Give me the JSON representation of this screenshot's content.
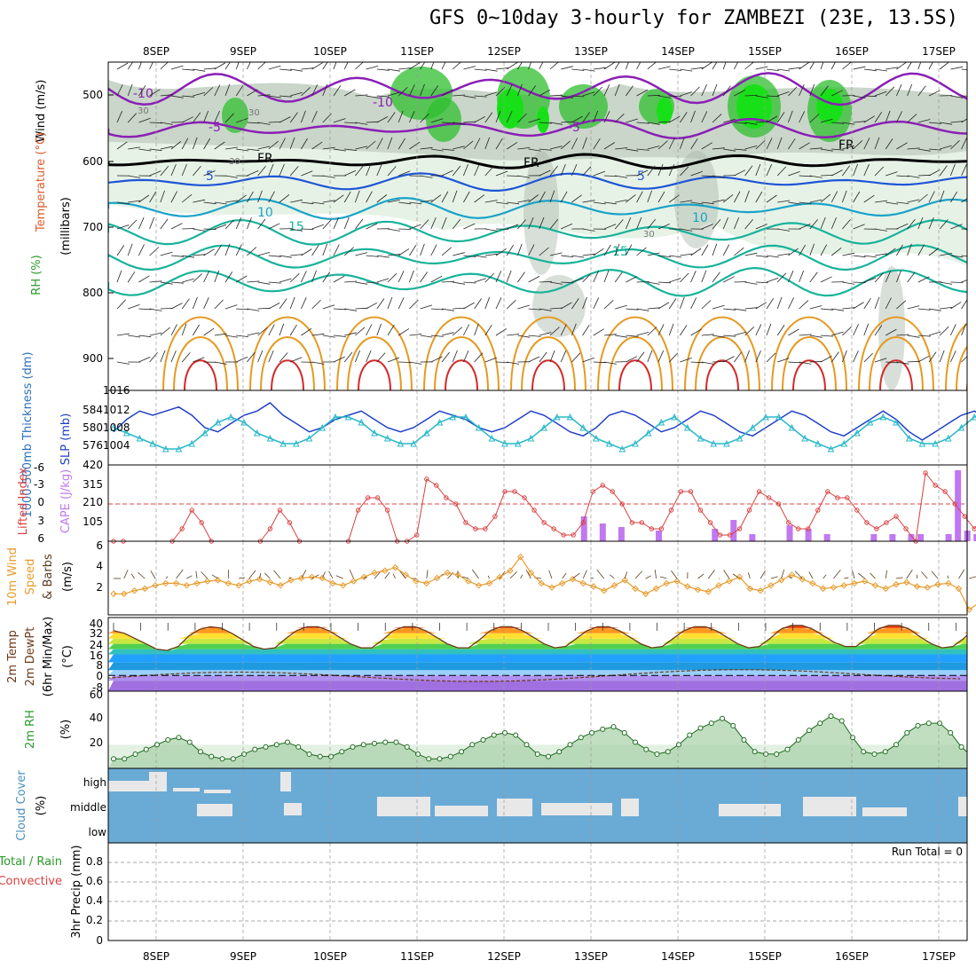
{
  "title": "GFS 0~10day 3-hourly for ZAMBEZI (23E, 13.5S)",
  "dates": [
    "8SEP",
    "9SEP",
    "10SEP",
    "11SEP",
    "12SEP",
    "13SEP",
    "14SEP",
    "15SEP",
    "16SEP",
    "17SEP"
  ],
  "colors": {
    "rh_green": "#2fbf2f",
    "rh_grey": "#8c9a8c",
    "fr_line": "#000000",
    "temp_purple": "#8a1fb5",
    "temp_blue": "#1f55d6",
    "temp_cyan": "#19a2c8",
    "temp_teal": "#17b39a",
    "temp_orange": "#e59a22",
    "temp_red": "#d42a2a",
    "slp_line": "#1f3fc8",
    "thick_line": "#2ab8c8",
    "li_line": "#d84040",
    "cape_bar": "#c078f0",
    "wind_line": "#e89a2a",
    "rh2m_fill": "#3aa03a",
    "cloud_blue": "#6aabd6",
    "cloud_gap": "#e8e8e8"
  },
  "panels": {
    "upper": {
      "ylabel_wind": "Wind (m/s)",
      "ylabel_temp": "Temperature (°C)",
      "ylabel_rh": "RH (%)",
      "ylabel_pres": "(millibars)",
      "yticks": [
        "500",
        "600",
        "700",
        "800",
        "900"
      ],
      "contour_labels": [
        "-10",
        "-10",
        "-5",
        "-5",
        "FR",
        "FR",
        "FR",
        "5",
        "5",
        "10",
        "10",
        "15",
        "15",
        "30",
        "30",
        "30",
        "30"
      ]
    },
    "slp": {
      "ylabel_left": "1000-500mb Thickness (dm)",
      "ylabel_right": "SLP (mb)",
      "left_ticks": [
        "584",
        "580",
        "576"
      ],
      "right_ticks": [
        "1016",
        "1012",
        "1008",
        "1004"
      ]
    },
    "cape": {
      "ylabel_left": "Lifted Index",
      "ylabel_right": "CAPE (J/kg)",
      "left_ticks": [
        "-6",
        "-3",
        "0",
        "3",
        "6"
      ],
      "right_ticks": [
        "420",
        "315",
        "210",
        "105"
      ]
    },
    "wind10": {
      "ylabel_a": "10m Wind",
      "ylabel_b": "Speed",
      "ylabel_c": "& Barbs",
      "ylabel_d": "(m/s)",
      "yticks": [
        "6",
        "4",
        "2"
      ]
    },
    "temp2m": {
      "ylabel_a": "2m Temp",
      "ylabel_b": "2m DewPt",
      "ylabel_c": "(6hr Min/Max)",
      "ylabel_d": "(°C)",
      "yticks": [
        "40",
        "32",
        "24",
        "16",
        "8",
        "0",
        "-8"
      ]
    },
    "rh2m": {
      "ylabel_a": "2m RH",
      "ylabel_b": "(%)",
      "yticks": [
        "60",
        "40",
        "20"
      ]
    },
    "cloud": {
      "ylabel_a": "Cloud Cover",
      "ylabel_b": "(%)",
      "levels": [
        "high",
        "middle",
        "low"
      ]
    },
    "precip": {
      "ylabel_a": "Total / Rain",
      "ylabel_b": "Convective",
      "ylabel_c": "3hr Precip (mm)",
      "yticks": [
        "0.8",
        "0.6",
        "0.4",
        "0.2",
        "0"
      ],
      "run_total": "Run Total = 0"
    }
  },
  "chart_data": [
    {
      "type": "line",
      "name_hint": "SLP panel",
      "x_start": "8SEP",
      "step_hours": 3,
      "series": [
        {
          "name": "SLP (mb)",
          "axis": "right",
          "values": [
            1008,
            1011,
            1013,
            1012,
            1013,
            1014,
            1012,
            1009,
            1008,
            1010,
            1012,
            1013,
            1015,
            1012,
            1010,
            1008,
            1009,
            1011,
            1012,
            1013,
            1011,
            1009,
            1008,
            1009,
            1011,
            1013,
            1012,
            1011,
            1009,
            1008,
            1009,
            1011,
            1013,
            1012,
            1010,
            1008,
            1007,
            1009,
            1012,
            1013,
            1012,
            1010,
            1008,
            1009,
            1011,
            1013,
            1012,
            1010,
            1008,
            1007,
            1009,
            1011,
            1013,
            1012,
            1010,
            1008,
            1007,
            1009,
            1011,
            1013,
            1011,
            1008,
            1006,
            1008,
            1010,
            1012,
            1013,
            1011,
            1009,
            1008,
            1009,
            1011,
            1012,
            1010,
            1008,
            1006,
            1005,
            1004,
            1007,
            1010,
            1011
          ]
        },
        {
          "name": "Thickness (dm)",
          "axis": "left",
          "values": [
            580,
            579,
            578,
            577,
            576,
            576,
            577,
            579,
            581,
            582,
            581,
            579,
            578,
            577,
            577,
            578,
            580,
            582,
            582,
            581,
            579,
            578,
            577,
            577,
            579,
            581,
            582,
            582,
            580,
            578,
            577,
            577,
            578,
            580,
            582,
            582,
            580,
            578,
            577,
            576,
            577,
            579,
            581,
            582,
            580,
            578,
            577,
            577,
            578,
            580,
            582,
            582,
            580,
            578,
            577,
            576,
            577,
            579,
            581,
            582,
            581,
            578,
            577,
            577,
            578,
            580,
            582,
            583,
            581,
            579,
            578,
            577,
            578,
            580,
            582,
            584,
            583,
            581,
            579,
            579,
            580
          ]
        }
      ]
    },
    {
      "type": "line",
      "name_hint": "Lifted Index / CAPE panel",
      "li_values": [
        6,
        6,
        null,
        null,
        null,
        null,
        6,
        4,
        1,
        3,
        6,
        null,
        null,
        null,
        null,
        6,
        4,
        1,
        3,
        6,
        null,
        null,
        null,
        null,
        6,
        1,
        -1,
        -1,
        1,
        6,
        6,
        5,
        -4,
        -3,
        -1,
        0,
        3,
        4,
        4,
        2,
        -2,
        -2,
        -1,
        1,
        3,
        4,
        5,
        5,
        3,
        -2,
        -3,
        -2,
        0,
        3,
        3,
        4,
        4,
        1,
        -2,
        -2,
        1,
        3,
        5,
        5,
        4,
        1,
        -2,
        -1,
        0,
        3,
        4,
        4,
        1,
        -2,
        -1,
        -1,
        1,
        3,
        4,
        3,
        2,
        4,
        6,
        -5,
        -3,
        -2,
        0,
        2,
        4,
        2,
        0,
        -1,
        0,
        2,
        4
      ],
      "cape_bars": [
        [
          50,
          140
        ],
        [
          52,
          100
        ],
        [
          54,
          80
        ],
        [
          58,
          60
        ],
        [
          64,
          70
        ],
        [
          66,
          120
        ],
        [
          68,
          40
        ],
        [
          72,
          90
        ],
        [
          74,
          70
        ],
        [
          76,
          40
        ],
        [
          81,
          40
        ],
        [
          83,
          40
        ],
        [
          85,
          40
        ],
        [
          86,
          40
        ],
        [
          89,
          40
        ],
        [
          90,
          400
        ],
        [
          91,
          60
        ],
        [
          92,
          40
        ],
        [
          98,
          20
        ],
        [
          99,
          60
        ],
        [
          100,
          30
        ],
        [
          109,
          30
        ]
      ]
    },
    {
      "type": "line",
      "name_hint": "10m wind speed",
      "values": [
        2,
        2,
        2.3,
        2.5,
        2.8,
        3,
        3,
        2.8,
        3,
        3.2,
        3.3,
        3,
        2.8,
        3.2,
        3.4,
        3.1,
        2.8,
        3.3,
        3.5,
        3.6,
        3.5,
        3,
        2.8,
        3.2,
        3.6,
        4,
        4.2,
        4.5,
        3.8,
        3.2,
        3,
        3.5,
        4,
        3.8,
        3.2,
        2.8,
        3,
        3.6,
        4.2,
        5.5,
        4,
        3,
        2.6,
        3,
        3.4,
        3,
        2.7,
        2.3,
        2.8,
        3.3,
        2.5,
        2,
        2.5,
        3,
        3.2,
        2.7,
        2.4,
        2.2,
        2.8,
        3.2,
        3.6,
        2.5,
        2.3,
        2.8,
        3.3,
        3.8,
        3.4,
        3,
        2.5,
        2.6,
        2.8,
        3,
        3.2,
        2.8,
        2.5,
        2.9,
        3.1,
        2.7,
        2.6,
        2.9,
        3,
        2.5,
        0.5,
        1.2,
        2,
        1.5,
        0.5,
        2,
        2.8,
        2.6,
        2.2,
        1.8,
        2.6,
        3.3,
        2.8,
        2.6,
        2.7,
        2.4,
        2.6,
        2.2,
        2.8
      ]
    },
    {
      "type": "area",
      "name_hint": "2m temperature",
      "values": [
        34,
        32,
        28,
        24,
        20,
        19,
        22,
        30,
        35,
        37,
        36,
        32,
        27,
        22,
        20,
        21,
        28,
        34,
        37,
        37,
        34,
        29,
        24,
        21,
        21,
        27,
        34,
        37,
        37,
        34,
        29,
        24,
        21,
        21,
        27,
        34,
        37,
        37,
        34,
        29,
        24,
        21,
        22,
        28,
        34,
        37,
        37,
        34,
        29,
        24,
        21,
        22,
        28,
        34,
        37,
        37,
        34,
        29,
        24,
        21,
        22,
        28,
        35,
        38,
        38,
        35,
        30,
        25,
        22,
        22,
        28,
        35,
        38,
        38,
        35,
        29,
        24,
        21,
        22,
        28,
        36,
        39,
        39,
        36,
        30,
        25,
        22,
        22,
        27,
        33,
        38,
        40,
        40,
        37,
        31,
        26,
        22,
        21,
        22,
        26
      ]
    },
    {
      "type": "line",
      "name_hint": "2m RH",
      "x_start": "8SEP",
      "step_hours": 3,
      "values": [
        8,
        8,
        12,
        16,
        20,
        24,
        26,
        22,
        14,
        10,
        8,
        8,
        12,
        16,
        18,
        20,
        22,
        18,
        12,
        10,
        10,
        14,
        18,
        20,
        21,
        22,
        22,
        18,
        12,
        8,
        8,
        10,
        14,
        20,
        24,
        28,
        30,
        28,
        20,
        12,
        10,
        14,
        20,
        26,
        30,
        33,
        35,
        30,
        22,
        16,
        12,
        14,
        20,
        28,
        34,
        38,
        42,
        36,
        24,
        14,
        12,
        12,
        16,
        24,
        32,
        38,
        44,
        40,
        26,
        14,
        12,
        14,
        20,
        30,
        36,
        38,
        38,
        30,
        18,
        10,
        10,
        14,
        24,
        38,
        52,
        56,
        40,
        24,
        10,
        8,
        8,
        14,
        22,
        32,
        48,
        44,
        40
      ]
    },
    {
      "type": "bar",
      "name_hint": "Cloud cover",
      "levels": [
        "high",
        "middle",
        "low"
      ],
      "note": "white = clear gaps; blue = cloud"
    },
    {
      "type": "line",
      "name_hint": "3hr Precip",
      "values": [],
      "ylim": [
        0,
        1
      ]
    }
  ]
}
